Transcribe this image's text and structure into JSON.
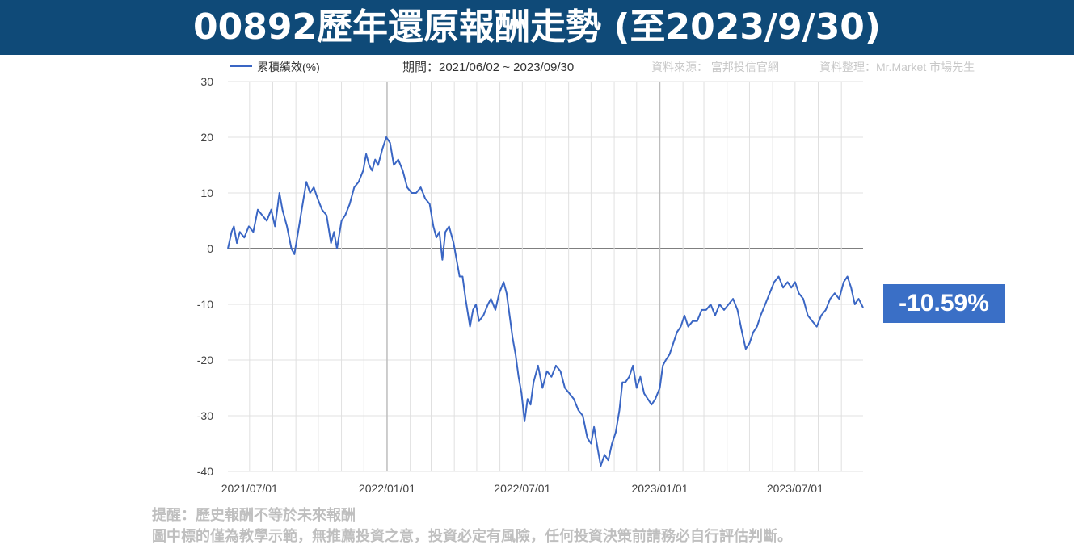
{
  "header": {
    "title": "00892歷年還原報酬走勢 (至2023/9/30)"
  },
  "info": {
    "legend_label": "累積績效(%)",
    "period": "期間：2021/06/02 ~ 2023/09/30",
    "source": "資料來源： 富邦投信官網",
    "compiler": "資料整理：Mr.Market 市場先生"
  },
  "final_value": "-10.59%",
  "disclaimer": {
    "line1": "提醒：歷史報酬不等於未來報酬",
    "line2": "圖中標的僅為教學示範，無推薦投資之意，投資必定有風險，任何投資決策前請務必自行評估判斷。"
  },
  "colors": {
    "title_bg": "#0f4a78",
    "series": "#3a66c4",
    "badge": "#3a6fc6",
    "grid": "#e0e0e0",
    "zero_line": "#555555"
  },
  "chart_data": {
    "type": "line",
    "ylim": [
      -40,
      30
    ],
    "xlim": [
      "2021-06-02",
      "2023-09-30"
    ],
    "yticks": [
      30,
      20,
      10,
      0,
      -10,
      -20,
      -30,
      -40
    ],
    "xticks": [
      {
        "date": "2021-07-01",
        "label": "2021/07/01"
      },
      {
        "date": "2022-01-01",
        "label": "2022/01/01"
      },
      {
        "date": "2022-07-01",
        "label": "2022/07/01"
      },
      {
        "date": "2023-01-01",
        "label": "2023/01/01"
      },
      {
        "date": "2023-07-01",
        "label": "2023/07/01"
      }
    ],
    "grid": true,
    "legend": "top-left",
    "series": [
      {
        "name": "累積績效(%)",
        "points": [
          [
            "2021-06-02",
            0
          ],
          [
            "2021-06-07",
            3
          ],
          [
            "2021-06-10",
            4
          ],
          [
            "2021-06-14",
            1
          ],
          [
            "2021-06-18",
            3
          ],
          [
            "2021-06-24",
            2
          ],
          [
            "2021-06-30",
            4
          ],
          [
            "2021-07-06",
            3
          ],
          [
            "2021-07-12",
            7
          ],
          [
            "2021-07-18",
            6
          ],
          [
            "2021-07-24",
            5
          ],
          [
            "2021-07-30",
            7
          ],
          [
            "2021-08-04",
            4
          ],
          [
            "2021-08-10",
            10
          ],
          [
            "2021-08-14",
            7
          ],
          [
            "2021-08-20",
            4
          ],
          [
            "2021-08-26",
            0
          ],
          [
            "2021-08-30",
            -1
          ],
          [
            "2021-09-04",
            3
          ],
          [
            "2021-09-10",
            8
          ],
          [
            "2021-09-15",
            12
          ],
          [
            "2021-09-20",
            10
          ],
          [
            "2021-09-25",
            11
          ],
          [
            "2021-09-30",
            9
          ],
          [
            "2021-10-06",
            7
          ],
          [
            "2021-10-12",
            6
          ],
          [
            "2021-10-18",
            1
          ],
          [
            "2021-10-22",
            3
          ],
          [
            "2021-10-26",
            0
          ],
          [
            "2021-11-01",
            5
          ],
          [
            "2021-11-06",
            6
          ],
          [
            "2021-11-12",
            8
          ],
          [
            "2021-11-18",
            11
          ],
          [
            "2021-11-24",
            12
          ],
          [
            "2021-11-30",
            14
          ],
          [
            "2021-12-04",
            17
          ],
          [
            "2021-12-08",
            15
          ],
          [
            "2021-12-12",
            14
          ],
          [
            "2021-12-16",
            16
          ],
          [
            "2021-12-20",
            15
          ],
          [
            "2021-12-26",
            18
          ],
          [
            "2021-12-31",
            20
          ],
          [
            "2022-01-05",
            19
          ],
          [
            "2022-01-10",
            15
          ],
          [
            "2022-01-16",
            16
          ],
          [
            "2022-01-22",
            14
          ],
          [
            "2022-01-28",
            11
          ],
          [
            "2022-02-03",
            10
          ],
          [
            "2022-02-09",
            10
          ],
          [
            "2022-02-15",
            11
          ],
          [
            "2022-02-21",
            9
          ],
          [
            "2022-02-27",
            8
          ],
          [
            "2022-03-04",
            4
          ],
          [
            "2022-03-08",
            2
          ],
          [
            "2022-03-12",
            3
          ],
          [
            "2022-03-16",
            -2
          ],
          [
            "2022-03-20",
            3
          ],
          [
            "2022-03-25",
            4
          ],
          [
            "2022-03-31",
            1
          ],
          [
            "2022-04-04",
            -2
          ],
          [
            "2022-04-08",
            -5
          ],
          [
            "2022-04-12",
            -5
          ],
          [
            "2022-04-16",
            -9
          ],
          [
            "2022-04-22",
            -14
          ],
          [
            "2022-04-26",
            -11
          ],
          [
            "2022-04-30",
            -10
          ],
          [
            "2022-05-04",
            -13
          ],
          [
            "2022-05-10",
            -12
          ],
          [
            "2022-05-16",
            -10
          ],
          [
            "2022-05-20",
            -9
          ],
          [
            "2022-05-26",
            -11
          ],
          [
            "2022-05-31",
            -8
          ],
          [
            "2022-06-06",
            -6
          ],
          [
            "2022-06-10",
            -8
          ],
          [
            "2022-06-14",
            -12
          ],
          [
            "2022-06-18",
            -16
          ],
          [
            "2022-06-22",
            -19
          ],
          [
            "2022-06-26",
            -23
          ],
          [
            "2022-06-30",
            -26
          ],
          [
            "2022-07-04",
            -31
          ],
          [
            "2022-07-08",
            -27
          ],
          [
            "2022-07-12",
            -28
          ],
          [
            "2022-07-16",
            -24
          ],
          [
            "2022-07-22",
            -21
          ],
          [
            "2022-07-28",
            -25
          ],
          [
            "2022-08-03",
            -22
          ],
          [
            "2022-08-09",
            -23
          ],
          [
            "2022-08-15",
            -21
          ],
          [
            "2022-08-21",
            -22
          ],
          [
            "2022-08-27",
            -25
          ],
          [
            "2022-09-02",
            -26
          ],
          [
            "2022-09-08",
            -27
          ],
          [
            "2022-09-14",
            -29
          ],
          [
            "2022-09-20",
            -30
          ],
          [
            "2022-09-26",
            -34
          ],
          [
            "2022-10-01",
            -35
          ],
          [
            "2022-10-05",
            -32
          ],
          [
            "2022-10-10",
            -36
          ],
          [
            "2022-10-14",
            -39
          ],
          [
            "2022-10-19",
            -37
          ],
          [
            "2022-10-24",
            -38
          ],
          [
            "2022-10-29",
            -35
          ],
          [
            "2022-11-03",
            -33
          ],
          [
            "2022-11-08",
            -29
          ],
          [
            "2022-11-12",
            -24
          ],
          [
            "2022-11-16",
            -24
          ],
          [
            "2022-11-21",
            -23
          ],
          [
            "2022-11-26",
            -21
          ],
          [
            "2022-12-01",
            -25
          ],
          [
            "2022-12-06",
            -23
          ],
          [
            "2022-12-11",
            -26
          ],
          [
            "2022-12-16",
            -27
          ],
          [
            "2022-12-21",
            -28
          ],
          [
            "2022-12-26",
            -27
          ],
          [
            "2023-01-01",
            -25
          ],
          [
            "2023-01-05",
            -21
          ],
          [
            "2023-01-09",
            -20
          ],
          [
            "2023-01-14",
            -19
          ],
          [
            "2023-01-19",
            -17
          ],
          [
            "2023-01-24",
            -15
          ],
          [
            "2023-01-29",
            -14
          ],
          [
            "2023-02-03",
            -12
          ],
          [
            "2023-02-08",
            -14
          ],
          [
            "2023-02-14",
            -13
          ],
          [
            "2023-02-20",
            -13
          ],
          [
            "2023-02-26",
            -11
          ],
          [
            "2023-03-04",
            -11
          ],
          [
            "2023-03-10",
            -10
          ],
          [
            "2023-03-16",
            -12
          ],
          [
            "2023-03-22",
            -10
          ],
          [
            "2023-03-28",
            -11
          ],
          [
            "2023-04-03",
            -10
          ],
          [
            "2023-04-09",
            -9
          ],
          [
            "2023-04-15",
            -11
          ],
          [
            "2023-04-21",
            -15
          ],
          [
            "2023-04-26",
            -18
          ],
          [
            "2023-05-01",
            -17
          ],
          [
            "2023-05-06",
            -15
          ],
          [
            "2023-05-11",
            -14
          ],
          [
            "2023-05-16",
            -12
          ],
          [
            "2023-05-22",
            -10
          ],
          [
            "2023-05-28",
            -8
          ],
          [
            "2023-06-03",
            -6
          ],
          [
            "2023-06-09",
            -5
          ],
          [
            "2023-06-15",
            -7
          ],
          [
            "2023-06-21",
            -6
          ],
          [
            "2023-06-26",
            -7
          ],
          [
            "2023-07-01",
            -6
          ],
          [
            "2023-07-06",
            -8
          ],
          [
            "2023-07-12",
            -9
          ],
          [
            "2023-07-18",
            -12
          ],
          [
            "2023-07-24",
            -13
          ],
          [
            "2023-07-30",
            -14
          ],
          [
            "2023-08-05",
            -12
          ],
          [
            "2023-08-11",
            -11
          ],
          [
            "2023-08-17",
            -9
          ],
          [
            "2023-08-23",
            -8
          ],
          [
            "2023-08-29",
            -9
          ],
          [
            "2023-09-04",
            -6
          ],
          [
            "2023-09-09",
            -5
          ],
          [
            "2023-09-14",
            -7
          ],
          [
            "2023-09-19",
            -10
          ],
          [
            "2023-09-24",
            -9
          ],
          [
            "2023-09-30",
            -10.59
          ]
        ]
      }
    ]
  }
}
